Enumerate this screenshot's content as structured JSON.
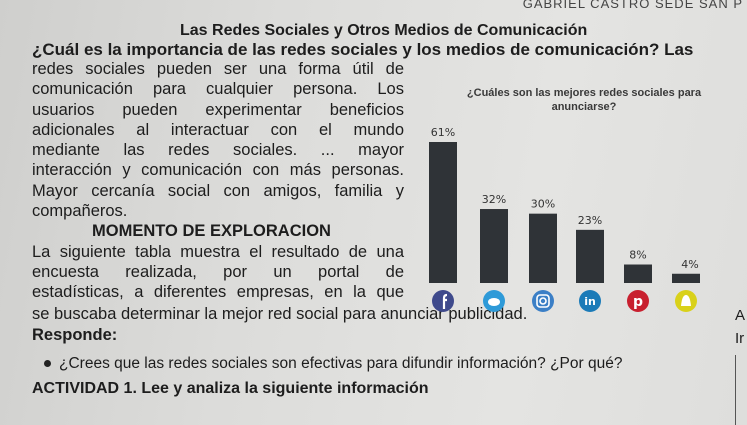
{
  "header": {
    "top_right": "GABRIEL CASTRO SEDE SAN P"
  },
  "document": {
    "title": "Las Redes Sociales y Otros Medios de Comunicación",
    "question": "¿Cuál es la importancia de las redes sociales y los medios de comunicación? Las",
    "lines": [
      "redes sociales pueden ser una forma útil de",
      "comunicación para cualquier persona. Los",
      "usuarios pueden experimentar beneficios",
      "adicionales al interactuar con el mundo",
      "mediante las redes sociales. ... mayor",
      "interacción y comunicación con más personas.",
      "Mayor cercanía social con amigos, familia y",
      "compañeros."
    ],
    "section_title": "MOMENTO DE EXPLORACION",
    "section_lines": [
      "La siguiente tabla muestra el resultado de una",
      "encuesta realizada, por un portal de",
      "estadísticas, a diferentes empresas, en la que"
    ],
    "continuation": "se buscaba determinar la mejor red social para anunciar publicidad.",
    "responde": "Responde:",
    "bullet": "¿Crees que las redes sociales son efectivas para difundir información? ¿Por qué?",
    "activity": "ACTIVIDAD 1. Lee y analiza la siguiente información",
    "cut_a": "A",
    "cut_i": "Ir"
  },
  "chart_data": {
    "type": "bar",
    "title": "¿Cuáles son las mejores redes sociales para anunciarse?",
    "categories": [
      "Facebook",
      "Twitter",
      "Instagram",
      "LinkedIn",
      "Pinterest",
      "Snapchat"
    ],
    "values": [
      61,
      32,
      30,
      23,
      8,
      4
    ],
    "labels": [
      "61%",
      "32%",
      "30%",
      "23%",
      "8%",
      "4%"
    ],
    "ylim": [
      0,
      61
    ],
    "icons": [
      "f",
      "t",
      "ig",
      "in",
      "p",
      "s"
    ],
    "colors": {
      "bars": [
        "#2f3337",
        "#2f3337",
        "#2f3337",
        "#2f3337",
        "#2f3337",
        "#2f3337"
      ],
      "icons": [
        "#3f4a8c",
        "#2e9ad8",
        "#3b7fc6",
        "#1b7bb8",
        "#c8202f",
        "#d9d11a"
      ]
    }
  }
}
